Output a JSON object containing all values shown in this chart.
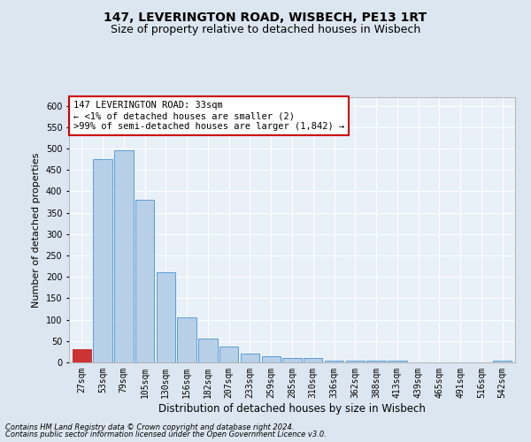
{
  "title": "147, LEVERINGTON ROAD, WISBECH, PE13 1RT",
  "subtitle": "Size of property relative to detached houses in Wisbech",
  "xlabel": "Distribution of detached houses by size in Wisbech",
  "ylabel": "Number of detached properties",
  "footer1": "Contains HM Land Registry data © Crown copyright and database right 2024.",
  "footer2": "Contains public sector information licensed under the Open Government Licence v3.0.",
  "categories": [
    "27sqm",
    "53sqm",
    "79sqm",
    "105sqm",
    "130sqm",
    "156sqm",
    "182sqm",
    "207sqm",
    "233sqm",
    "259sqm",
    "285sqm",
    "310sqm",
    "336sqm",
    "362sqm",
    "388sqm",
    "413sqm",
    "439sqm",
    "465sqm",
    "491sqm",
    "516sqm",
    "542sqm"
  ],
  "values": [
    30,
    475,
    497,
    380,
    210,
    105,
    55,
    37,
    20,
    14,
    10,
    10,
    5,
    4,
    4,
    5,
    1,
    1,
    0,
    1,
    4
  ],
  "bar_color": "#b8cfe8",
  "bar_edge_color": "#5a9fd4",
  "highlight_bar_index": 0,
  "highlight_bar_color": "#cc3333",
  "annotation_text": "147 LEVERINGTON ROAD: 33sqm\n← <1% of detached houses are smaller (2)\n>99% of semi-detached houses are larger (1,842) →",
  "annotation_box_facecolor": "#ffffff",
  "annotation_box_edgecolor": "#cc0000",
  "ylim": [
    0,
    620
  ],
  "yticks": [
    0,
    50,
    100,
    150,
    200,
    250,
    300,
    350,
    400,
    450,
    500,
    550,
    600
  ],
  "bg_color": "#dce6f0",
  "plot_bg_color": "#e8f0f8",
  "grid_color": "#ffffff",
  "title_fontsize": 10,
  "subtitle_fontsize": 9,
  "xlabel_fontsize": 8.5,
  "ylabel_fontsize": 8,
  "tick_fontsize": 7,
  "annotation_fontsize": 7.5,
  "footer_fontsize": 6
}
